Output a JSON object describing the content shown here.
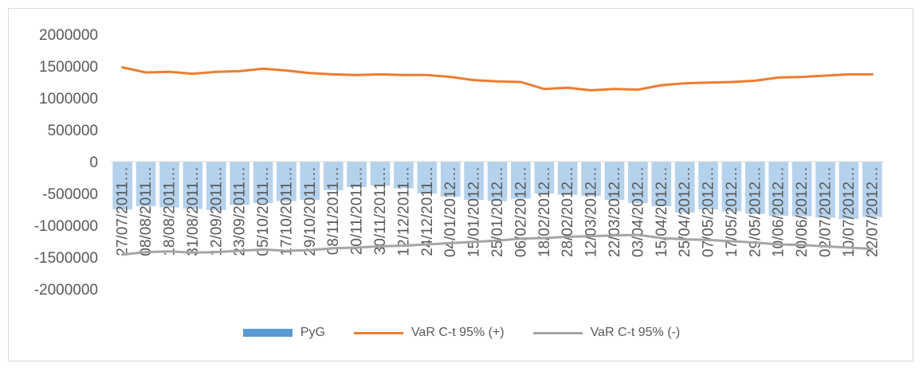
{
  "chart_data": {
    "type": "bar+line",
    "title": "",
    "xlabel": "",
    "ylabel": "",
    "ylim": [
      -2000000,
      2000000
    ],
    "yticks": [
      2000000,
      1500000,
      1000000,
      500000,
      0,
      -500000,
      -1000000,
      -1500000,
      -2000000
    ],
    "ytick_labels": [
      "2000000",
      "1500000",
      "1000000",
      "500000",
      "0",
      "-500000",
      "-1000000",
      "-1500000",
      "-2000000"
    ],
    "xtick_labels": [
      "27/07/2011…",
      "08/08/2011…",
      "18/08/2011…",
      "31/08/2011…",
      "12/09/2011…",
      "23/09/2011…",
      "05/10/2011…",
      "17/10/2011…",
      "29/10/2011…",
      "08/11/2011…",
      "20/11/2011…",
      "30/11/2011…",
      "12/12/2011…",
      "24/12/2011…",
      "04/01/2012…",
      "15/01/2012…",
      "25/01/2012…",
      "06/02/2012…",
      "18/02/2012…",
      "28/02/2012…",
      "12/03/2012…",
      "22/03/2012…",
      "03/04/2012…",
      "15/04/2012…",
      "25/04/2012…",
      "07/05/2012…",
      "17/05/2012…",
      "29/05/2012…",
      "10/06/2012…",
      "20/06/2012…",
      "02/07/2012…",
      "10/07/2012…",
      "22/07/2012…"
    ],
    "grid": false,
    "legend_position": "bottom",
    "series": [
      {
        "name": "PyG",
        "type": "bar",
        "color": "#5b9bd5",
        "values": [
          -750000,
          -700000,
          -720000,
          -740000,
          -760000,
          -680000,
          -650000,
          -620000,
          -600000,
          -450000,
          -400000,
          -380000,
          -420000,
          -500000,
          -550000,
          -600000,
          -620000,
          -580000,
          -500000,
          -520000,
          -540000,
          -600000,
          -650000,
          -700000,
          -800000,
          -750000,
          -780000,
          -820000,
          -850000,
          -860000,
          -880000,
          -900000,
          -870000
        ]
      },
      {
        "name": "VaR  C-t 95% (+)",
        "type": "line",
        "color": "#ed7d31",
        "values": [
          1480000,
          1400000,
          1410000,
          1380000,
          1410000,
          1420000,
          1460000,
          1430000,
          1390000,
          1370000,
          1360000,
          1370000,
          1360000,
          1360000,
          1330000,
          1280000,
          1260000,
          1250000,
          1140000,
          1160000,
          1120000,
          1140000,
          1130000,
          1200000,
          1230000,
          1240000,
          1250000,
          1270000,
          1320000,
          1330000,
          1350000,
          1370000,
          1370000
        ]
      },
      {
        "name": "VaR  C-t 95% (-)",
        "type": "line",
        "color": "#a5a5a5",
        "values": [
          -1460000,
          -1420000,
          -1410000,
          -1430000,
          -1420000,
          -1400000,
          -1380000,
          -1400000,
          -1390000,
          -1360000,
          -1350000,
          -1330000,
          -1320000,
          -1300000,
          -1280000,
          -1260000,
          -1240000,
          -1210000,
          -1200000,
          -1180000,
          -1170000,
          -1160000,
          -1150000,
          -1200000,
          -1220000,
          -1230000,
          -1250000,
          -1270000,
          -1300000,
          -1310000,
          -1330000,
          -1350000,
          -1370000
        ]
      }
    ]
  },
  "legend": {
    "pyg_label": "PyG",
    "var_pos_label": "VaR  C-t 95% (+)",
    "var_neg_label": "VaR  C-t 95% (-)"
  }
}
